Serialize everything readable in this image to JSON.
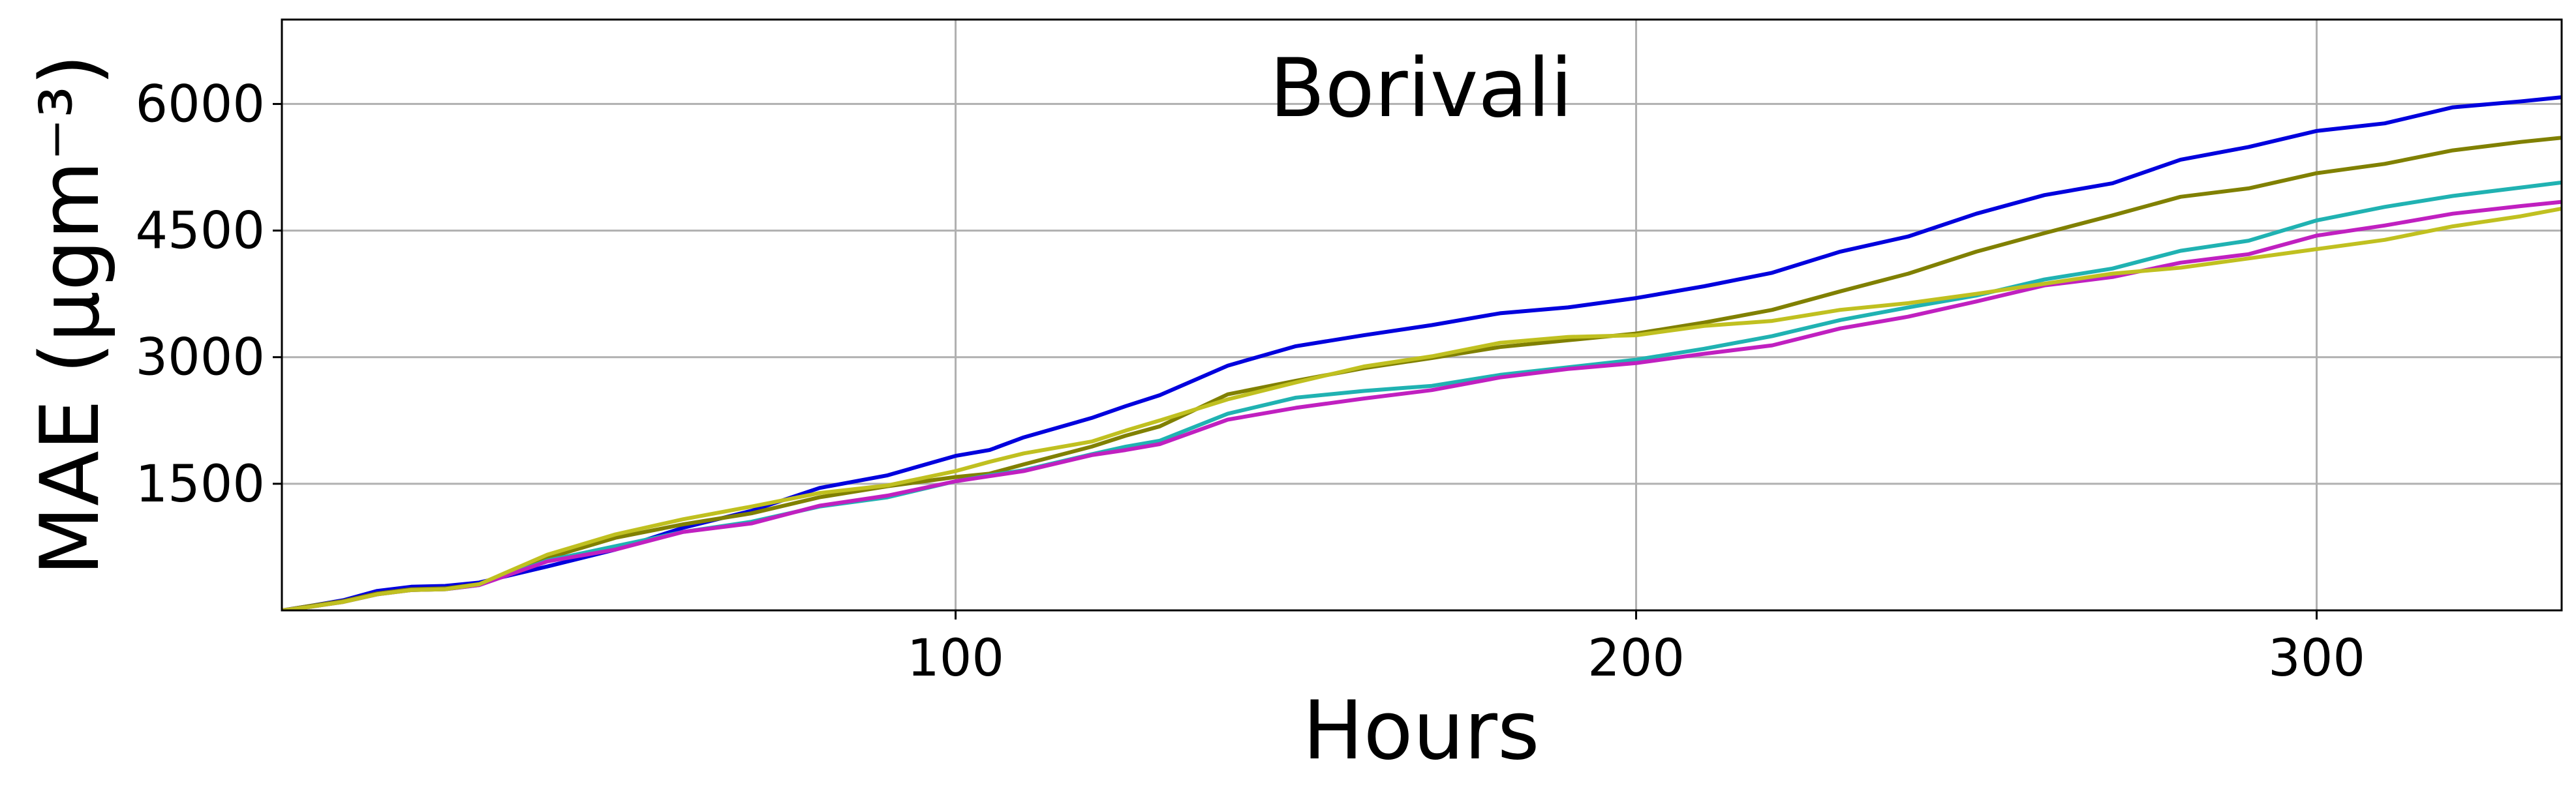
{
  "chart_data": {
    "type": "line",
    "title": "Borivali",
    "xlabel": "Hours",
    "ylabel": "MAE (μgm⁻³)",
    "xlim": [
      1,
      336
    ],
    "ylim": [
      0,
      7000
    ],
    "xticks": [
      100,
      200,
      300
    ],
    "yticks": [
      1500,
      3000,
      4500,
      6000
    ],
    "grid": true,
    "series": [
      {
        "color": "#0000dd",
        "x": [
          1,
          5,
          10,
          15,
          20,
          25,
          30,
          40,
          50,
          60,
          70,
          80,
          90,
          100,
          105,
          110,
          120,
          125,
          130,
          140,
          150,
          160,
          170,
          180,
          190,
          200,
          210,
          220,
          230,
          240,
          250,
          260,
          270,
          280,
          290,
          300,
          310,
          320,
          330,
          336
        ],
        "y": [
          0,
          50,
          120,
          230,
          280,
          290,
          330,
          520,
          720,
          980,
          1180,
          1450,
          1600,
          1830,
          1900,
          2050,
          2280,
          2420,
          2550,
          2900,
          3130,
          3260,
          3380,
          3520,
          3590,
          3700,
          3840,
          4000,
          4250,
          4430,
          4700,
          4920,
          5060,
          5340,
          5490,
          5680,
          5770,
          5960,
          6030,
          6080
        ]
      },
      {
        "color": "#808000",
        "x": [
          1,
          5,
          10,
          15,
          20,
          25,
          30,
          40,
          50,
          60,
          70,
          80,
          90,
          100,
          105,
          110,
          120,
          125,
          130,
          140,
          150,
          160,
          170,
          180,
          190,
          200,
          210,
          220,
          230,
          240,
          250,
          260,
          270,
          280,
          290,
          300,
          310,
          320,
          330,
          336
        ],
        "y": [
          0,
          50,
          110,
          200,
          250,
          260,
          310,
          620,
          860,
          1020,
          1150,
          1340,
          1470,
          1580,
          1620,
          1730,
          1940,
          2070,
          2180,
          2560,
          2720,
          2870,
          2990,
          3120,
          3200,
          3280,
          3410,
          3560,
          3780,
          3990,
          4250,
          4470,
          4680,
          4900,
          5000,
          5180,
          5290,
          5450,
          5550,
          5600
        ]
      },
      {
        "color": "#20b2b2",
        "x": [
          1,
          5,
          10,
          15,
          20,
          25,
          30,
          40,
          50,
          60,
          70,
          80,
          90,
          100,
          105,
          110,
          120,
          125,
          130,
          140,
          150,
          160,
          170,
          180,
          190,
          200,
          210,
          220,
          230,
          240,
          250,
          260,
          270,
          280,
          290,
          300,
          310,
          320,
          330,
          336
        ],
        "y": [
          0,
          40,
          100,
          190,
          240,
          250,
          300,
          590,
          760,
          930,
          1050,
          1230,
          1340,
          1530,
          1600,
          1660,
          1850,
          1940,
          2010,
          2330,
          2520,
          2600,
          2660,
          2790,
          2880,
          2970,
          3100,
          3250,
          3440,
          3590,
          3730,
          3920,
          4050,
          4260,
          4380,
          4620,
          4780,
          4910,
          5010,
          5070
        ]
      },
      {
        "color": "#c020c0",
        "x": [
          1,
          5,
          10,
          15,
          20,
          25,
          30,
          40,
          50,
          60,
          70,
          80,
          90,
          100,
          105,
          110,
          120,
          125,
          130,
          140,
          150,
          160,
          170,
          180,
          190,
          200,
          210,
          220,
          230,
          240,
          250,
          260,
          270,
          280,
          290,
          300,
          310,
          320,
          330,
          336
        ],
        "y": [
          0,
          40,
          100,
          190,
          240,
          250,
          300,
          580,
          720,
          930,
          1030,
          1240,
          1360,
          1530,
          1590,
          1650,
          1840,
          1900,
          1970,
          2260,
          2400,
          2510,
          2610,
          2760,
          2860,
          2930,
          3040,
          3140,
          3340,
          3480,
          3660,
          3850,
          3950,
          4120,
          4220,
          4440,
          4560,
          4700,
          4790,
          4840
        ]
      },
      {
        "color": "#c0c020",
        "x": [
          1,
          5,
          10,
          15,
          20,
          25,
          30,
          40,
          50,
          60,
          70,
          80,
          90,
          100,
          105,
          110,
          120,
          125,
          130,
          140,
          150,
          160,
          170,
          180,
          190,
          200,
          210,
          220,
          230,
          240,
          250,
          260,
          270,
          280,
          290,
          300,
          310,
          320,
          330,
          336
        ],
        "y": [
          0,
          40,
          100,
          190,
          240,
          250,
          310,
          660,
          900,
          1080,
          1230,
          1390,
          1480,
          1650,
          1760,
          1860,
          2000,
          2130,
          2250,
          2500,
          2700,
          2890,
          3010,
          3170,
          3240,
          3260,
          3370,
          3430,
          3560,
          3640,
          3750,
          3870,
          3990,
          4060,
          4170,
          4280,
          4390,
          4550,
          4670,
          4760
        ]
      }
    ]
  }
}
